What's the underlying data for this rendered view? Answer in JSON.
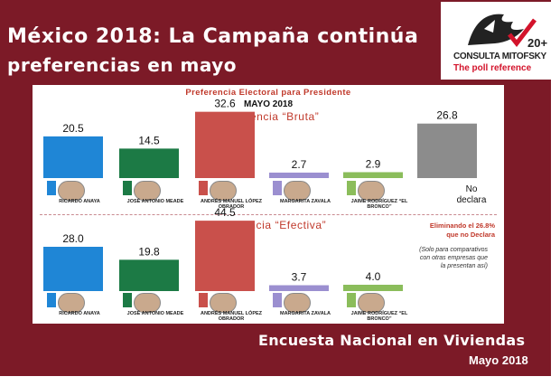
{
  "title_line1": "México 2018: La Campaña continúa",
  "title_line2": "preferencias en mayo",
  "logo": {
    "brand": "CONSULTA MITOFSKY",
    "tagline": "The poll reference",
    "anniversary": "20+",
    "icon": "consulta-mitofsky-logo-icon"
  },
  "colors": {
    "frame": "#7c1a27",
    "anaya": "#1f86d6",
    "meade": "#1c7a45",
    "amlo": "#c9504b",
    "zavala": "#9b8fd0",
    "rodriguez": "#8bbd5b",
    "nodeclara": "#8c8c8c"
  },
  "chart_data": [
    {
      "type": "bar",
      "header_line1": "Preferencia Electoral para Presidente",
      "header_line2": "MAYO 2018",
      "title": "Preferencia “Bruta”",
      "categories": [
        "RICARDO ANAYA",
        "JOSÉ ANTONIO MEADE",
        "ANDRÉS MANUEL LÓPEZ OBRADOR",
        "MARGARITA ZAVALA",
        "JAIME RODRÍGUEZ “EL BRONCO”",
        "No declara"
      ],
      "values": [
        20.5,
        14.5,
        32.6,
        2.7,
        2.9,
        26.8
      ],
      "value_labels": [
        "20.5",
        "14.5",
        "32.6",
        "2.7",
        "2.9",
        "26.8"
      ],
      "ylim": [
        0,
        45
      ]
    },
    {
      "type": "bar",
      "title": "Preferencia “Efectiva”",
      "categories": [
        "RICARDO ANAYA",
        "JOSÉ ANTONIO MEADE",
        "ANDRÉS MANUEL LÓPEZ OBRADOR",
        "MARGARITA ZAVALA",
        "JAIME RODRÍGUEZ “EL BRONCO”"
      ],
      "values": [
        28.0,
        19.8,
        44.5,
        3.7,
        4.0
      ],
      "value_labels": [
        "28.0",
        "19.8",
        "44.5",
        "3.7",
        "4.0"
      ],
      "ylim": [
        0,
        45
      ],
      "annotation_line1": "Eliminando el 26.8%",
      "annotation_line2": "que no Declara",
      "note_line1": "(Solo para comparativos",
      "note_line2": "con otras empresas que",
      "note_line3": "la presentan así)"
    }
  ],
  "candidates": [
    {
      "name1": "RICARDO ANAYA",
      "name2": "",
      "icon": "pan-party-logo-icon"
    },
    {
      "name1": "JOSÉ ANTONIO",
      "name2": "MEADE",
      "icon": "pri-party-logo-icon"
    },
    {
      "name1": "ANDRÉS MANUEL",
      "name2": "LÓPEZ OBRADOR",
      "icon": "morena-party-logo-icon"
    },
    {
      "name1": "MARGARITA",
      "name2": "ZAVALA",
      "icon": "independent-logo-icon"
    },
    {
      "name1": "JAIME RODRÍGUEZ",
      "name2": "“EL BRONCO”",
      "icon": "independent-logo-icon"
    }
  ],
  "nodeclara_line1": "No",
  "nodeclara_line2": "declara",
  "footer_title": "Encuesta Nacional en Viviendas",
  "footer_date": "Mayo 2018"
}
